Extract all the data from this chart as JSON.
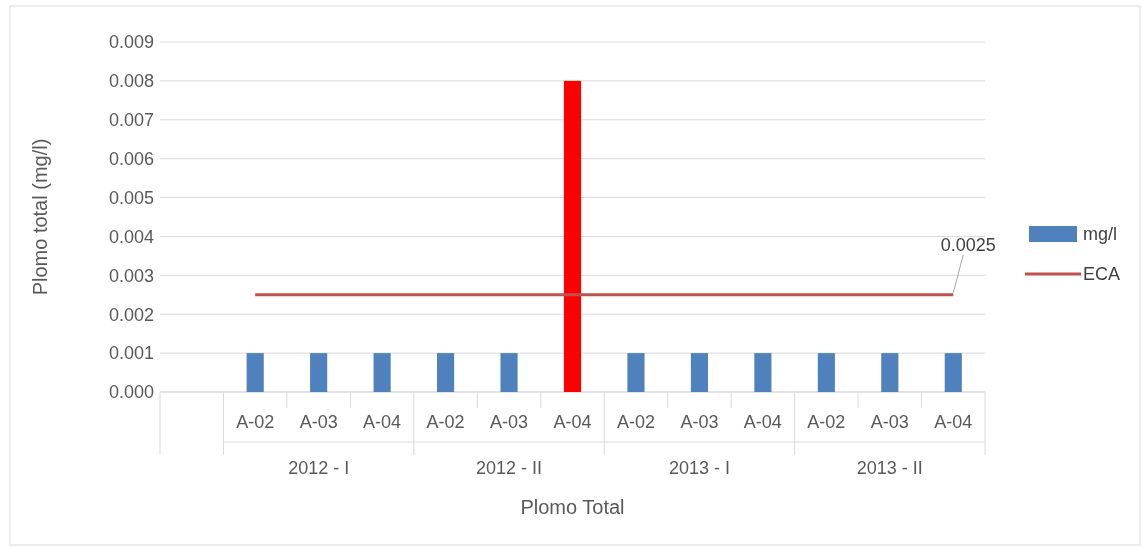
{
  "chart_data": {
    "type": "bar",
    "xlabel": "Plomo Total",
    "ylabel": "Plomo total (mg/l)",
    "categories": [
      null,
      "A-02",
      "A-03",
      "A-04",
      "A-02",
      "A-03",
      "A-04",
      "A-02",
      "A-03",
      "A-04",
      "A-02",
      "A-03",
      "A-04"
    ],
    "series": [
      {
        "name": "mg/l",
        "color": "#4f81bd",
        "colors": [
          null,
          "#4f81bd",
          "#4f81bd",
          "#4f81bd",
          "#4f81bd",
          "#4f81bd",
          "#ff0000",
          "#4f81bd",
          "#4f81bd",
          "#4f81bd",
          "#4f81bd",
          "#4f81bd",
          "#4f81bd"
        ],
        "values": [
          null,
          0.001,
          0.001,
          0.001,
          0.001,
          0.001,
          0.008,
          0.001,
          0.001,
          0.001,
          0.001,
          0.001,
          0.001
        ]
      },
      {
        "name": "ECA",
        "type": "line",
        "color": "#c0504d",
        "values": [
          null,
          0.0025,
          0.0025,
          0.0025,
          0.0025,
          0.0025,
          0.0025,
          0.0025,
          0.0025,
          0.0025,
          0.0025,
          0.0025,
          0.0025
        ],
        "value_labels": [
          null,
          null,
          null,
          null,
          null,
          null,
          null,
          null,
          null,
          null,
          null,
          null,
          "0.0025"
        ]
      }
    ],
    "annotations": [
      "2012 - I",
      "2012 - II",
      "2013 - I",
      "2013 - II"
    ],
    "ylim": [
      0,
      0.009
    ],
    "yticks": [
      {
        "value": 0,
        "label": "0.000"
      },
      {
        "value": 0.001,
        "label": "0.001"
      },
      {
        "value": 0.002,
        "label": "0.002"
      },
      {
        "value": 0.003,
        "label": "0.003"
      },
      {
        "value": 0.004,
        "label": "0.004"
      },
      {
        "value": 0.005,
        "label": "0.005"
      },
      {
        "value": 0.006,
        "label": "0.006"
      },
      {
        "value": 0.007,
        "label": "0.007"
      },
      {
        "value": 0.008,
        "label": "0.008"
      },
      {
        "value": 0.009,
        "label": "0.009"
      }
    ],
    "grid": "y",
    "legend": "right"
  }
}
